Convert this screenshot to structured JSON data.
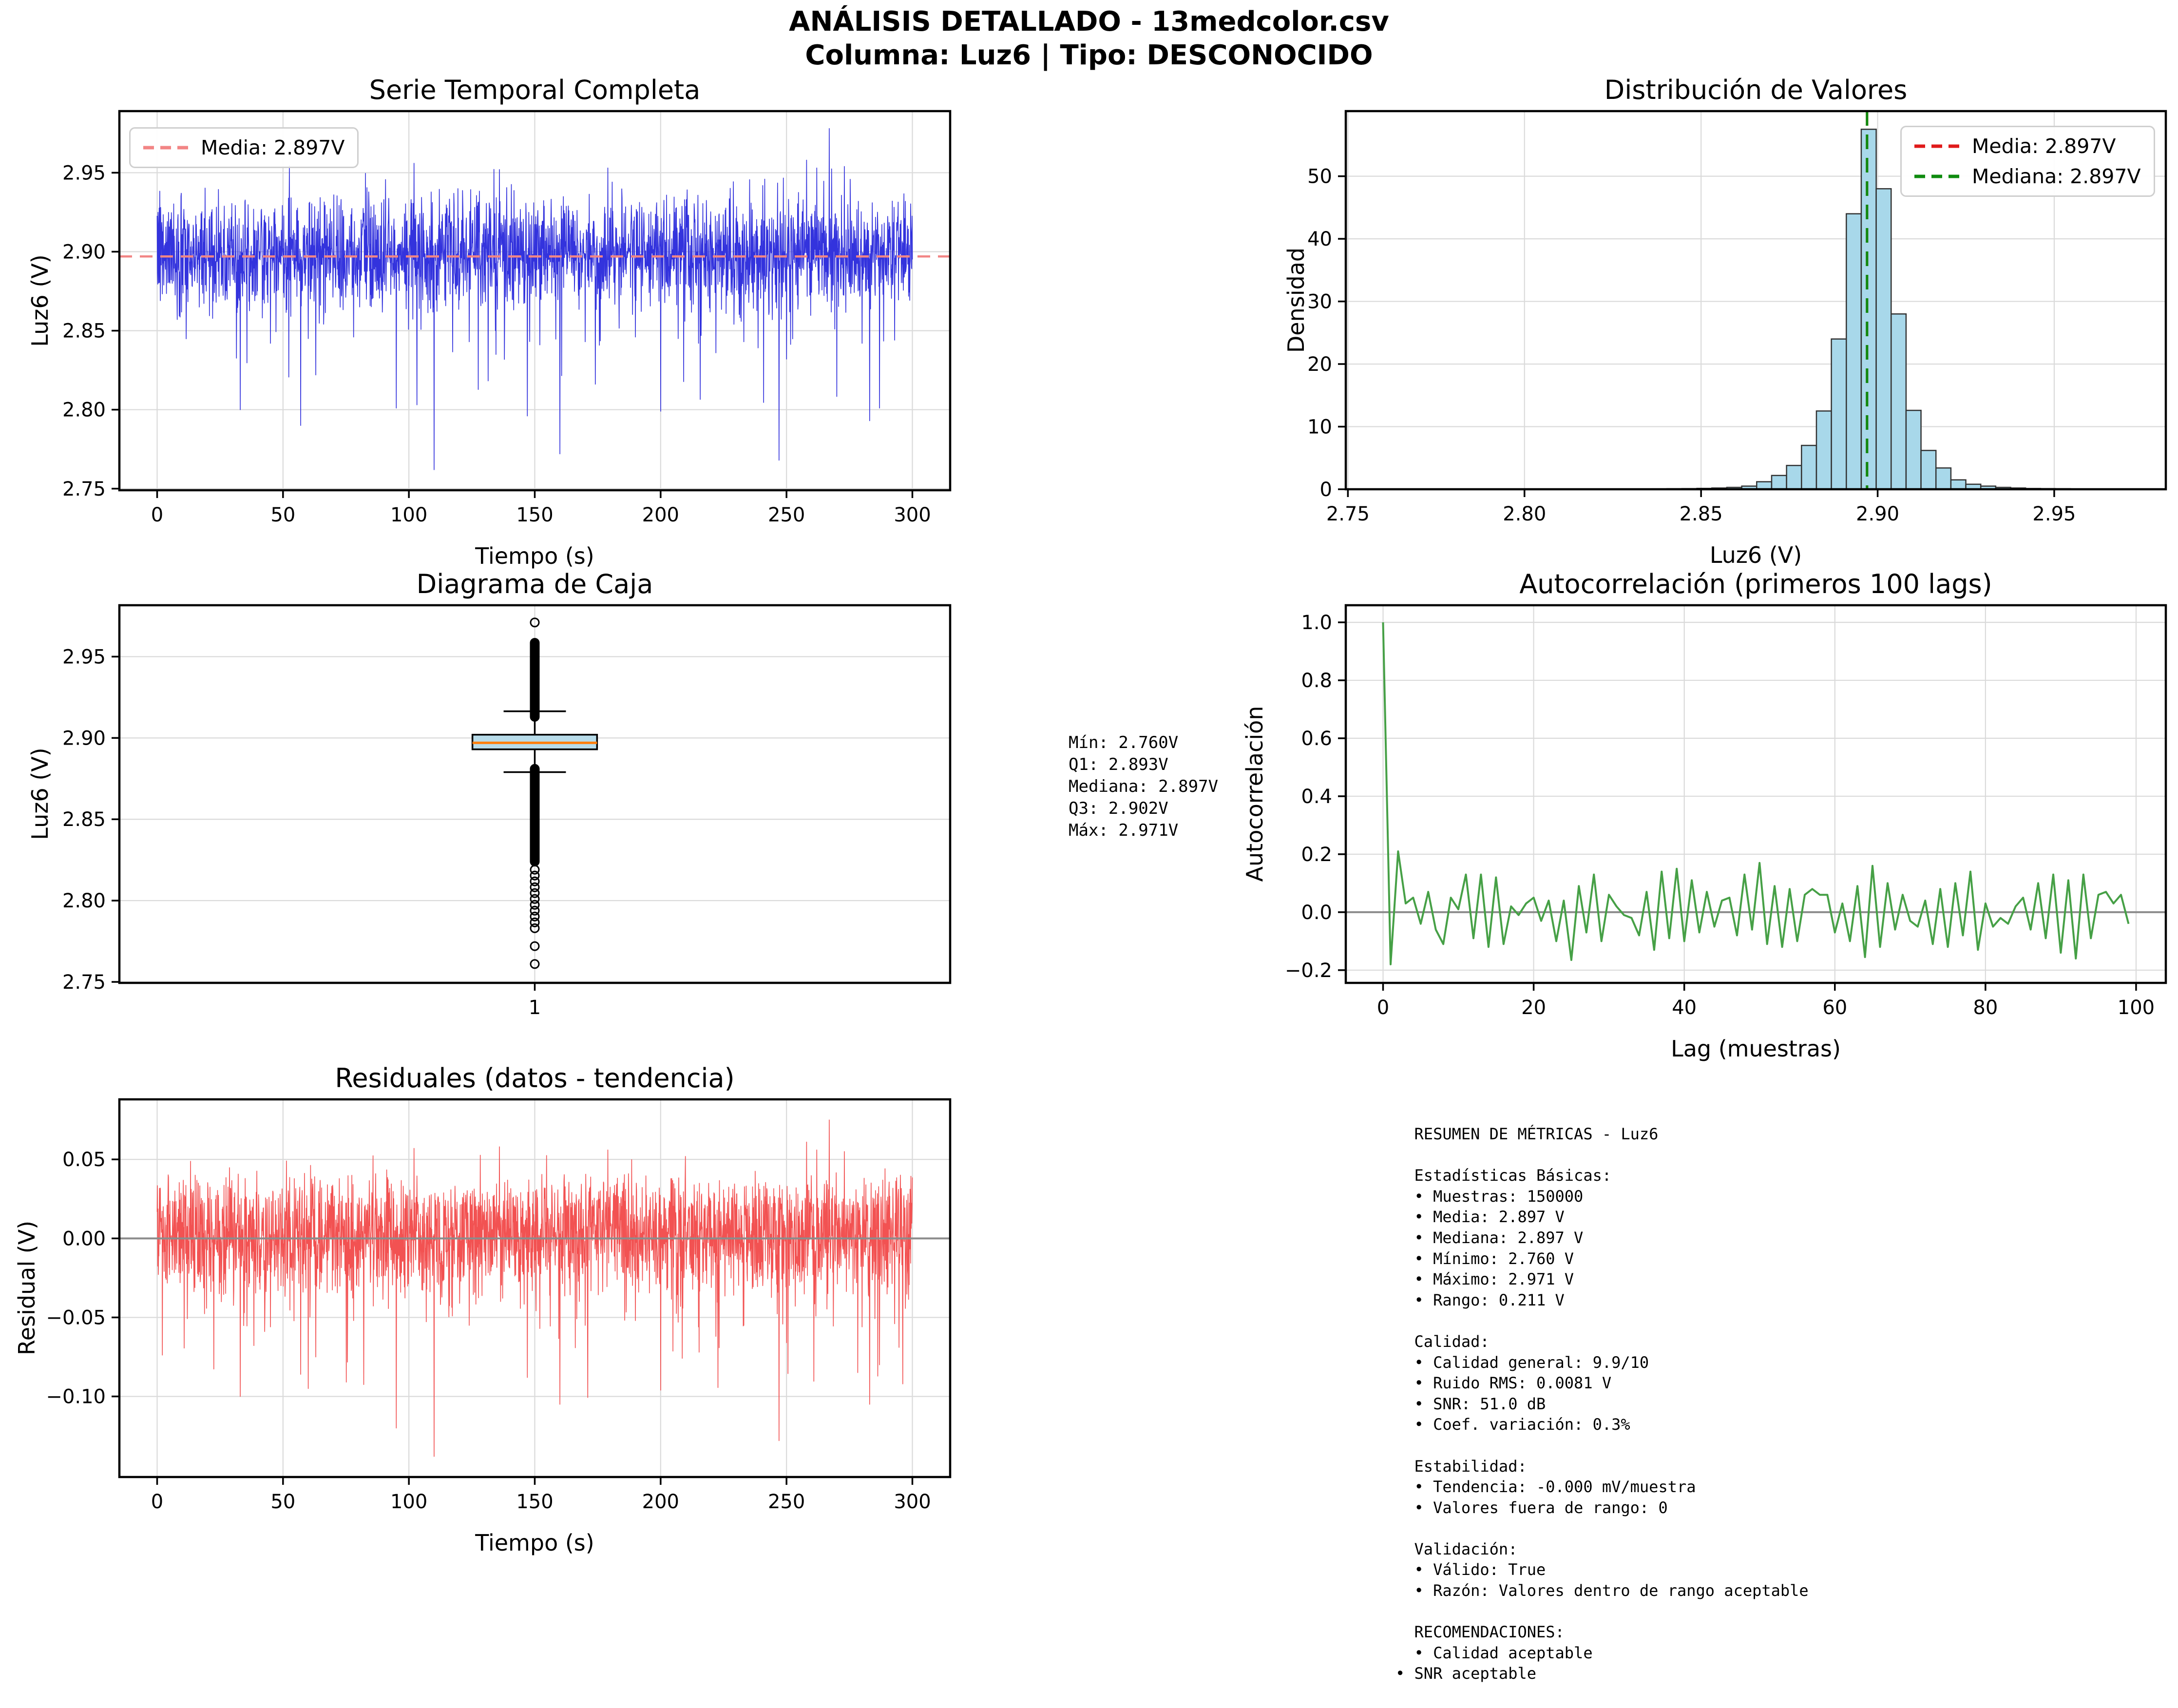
{
  "header": {
    "line1": "ANÁLISIS DETALLADO - 13medcolor.csv",
    "line2": "Columna: Luz6 | Tipo: DESCONOCIDO"
  },
  "colors": {
    "series_blue": "#3333dd",
    "mean_dash_soft_red": "#f28585",
    "mean_dash_red": "#e01a1a",
    "median_green": "#0f8b0f",
    "hist_fill": "#a8d8ea",
    "hist_edge": "#333333",
    "box_fill": "#b8dcea",
    "box_median_orange": "#ff7f0e",
    "acf_green": "#46a046",
    "residual_red": "#f25252",
    "zero_line_gray": "#8c8c8c",
    "grid": "#dadada",
    "spine": "#000000"
  },
  "stats_box": {
    "lines": [
      "Mín: 2.760V",
      "Q1: 2.893V",
      "Mediana: 2.897V",
      "Q3: 2.902V",
      "Máx: 2.971V"
    ]
  },
  "metrics_panel": {
    "lines": [
      "  RESUMEN DE MÉTRICAS - Luz6",
      "",
      "  Estadísticas Básicas:",
      "  • Muestras: 150000",
      "  • Media: 2.897 V",
      "  • Mediana: 2.897 V",
      "  • Mínimo: 2.760 V",
      "  • Máximo: 2.971 V",
      "  • Rango: 0.211 V",
      "",
      "  Calidad:",
      "  • Calidad general: 9.9/10",
      "  • Ruido RMS: 0.0081 V",
      "  • SNR: 51.0 dB",
      "  • Coef. variación: 0.3%",
      "",
      "  Estabilidad:",
      "  • Tendencia: -0.000 mV/muestra",
      "  • Valores fuera de rango: 0",
      "",
      "  Validación:",
      "  • Válido: True",
      "  • Razón: Valores dentro de rango aceptable",
      "",
      "  RECOMENDACIONES:",
      "  • Calidad aceptable",
      "• SNR aceptable"
    ]
  },
  "chart_data": [
    {
      "id": "serie-temporal",
      "type": "line_noise",
      "title": "Serie Temporal Completa",
      "xlabel": "Tiempo (s)",
      "ylabel": "Luz6 (V)",
      "xlim": [
        -15,
        315
      ],
      "ylim": [
        2.749,
        2.989
      ],
      "xticks": [
        0,
        50,
        100,
        150,
        200,
        250,
        300
      ],
      "xtick_labels": [
        "0",
        "50",
        "100",
        "150",
        "200",
        "250",
        "300"
      ],
      "yticks": [
        2.75,
        2.8,
        2.85,
        2.9,
        2.95
      ],
      "ytick_labels": [
        "2.75",
        "2.80",
        "2.85",
        "2.90",
        "2.95"
      ],
      "grid": true,
      "legend": {
        "entries": [
          {
            "label": "Media: 2.897V",
            "color": "#f28585"
          }
        ]
      },
      "mean_line": {
        "y": 2.897,
        "color": "#f28585"
      },
      "series": {
        "color": "#3333dd",
        "n": 2600,
        "seed": 7,
        "mean": 2.897,
        "sigma": 0.011,
        "up_off": 0.016,
        "up_scale": 0.013,
        "dn_off": 0.016,
        "dn_scale": 0.014,
        "deep_min": 0.05,
        "deep_span": 0.045,
        "clip_lo": 2.8,
        "clip_hi": 2.9565,
        "p_base": 0.7,
        "p_up": 0.88,
        "p_deep": 0.992,
        "spikes": [
          [
            33,
            2.8
          ],
          [
            45,
            2.842
          ],
          [
            57,
            2.79
          ],
          [
            60,
            2.845
          ],
          [
            63,
            2.822
          ],
          [
            78,
            2.846
          ],
          [
            95,
            2.801
          ],
          [
            102,
            2.956
          ],
          [
            110,
            2.762
          ],
          [
            124,
            2.843
          ],
          [
            136,
            2.952
          ],
          [
            147,
            2.796
          ],
          [
            152,
            2.841
          ],
          [
            160,
            2.772
          ],
          [
            170,
            2.843
          ],
          [
            179,
            2.953
          ],
          [
            190,
            2.846
          ],
          [
            200,
            2.799
          ],
          [
            207,
            2.845
          ],
          [
            215,
            2.842
          ],
          [
            222,
            2.836
          ],
          [
            233,
            2.843
          ],
          [
            247,
            2.768
          ],
          [
            250,
            2.832
          ],
          [
            258,
            2.958
          ],
          [
            262,
            2.953
          ],
          [
            267,
            2.978
          ],
          [
            273,
            2.954
          ],
          [
            280,
            2.842
          ],
          [
            283,
            2.793
          ],
          [
            287,
            2.801
          ],
          [
            293,
            2.844
          ]
        ]
      }
    },
    {
      "id": "distribucion",
      "type": "histogram",
      "title": "Distribución de Valores",
      "xlabel": "Luz6 (V)",
      "ylabel": "Densidad",
      "xlim": [
        2.7494,
        2.9816
      ],
      "ylim": [
        0,
        60.4
      ],
      "xticks": [
        2.75,
        2.8,
        2.85,
        2.9,
        2.95
      ],
      "xtick_labels": [
        "2.75",
        "2.80",
        "2.85",
        "2.90",
        "2.95"
      ],
      "yticks": [
        0,
        10,
        20,
        30,
        40,
        50
      ],
      "ytick_labels": [
        "0",
        "10",
        "20",
        "30",
        "40",
        "50"
      ],
      "grid": true,
      "legend": {
        "entries": [
          {
            "label": "Media: 2.897V",
            "color": "#e01a1a"
          },
          {
            "label": "Mediana: 2.897V",
            "color": "#0f8b0f"
          }
        ]
      },
      "bins": {
        "start": 2.76,
        "width": 0.00423,
        "densities": [
          0.05,
          0,
          0.02,
          0,
          0,
          0.02,
          0,
          0,
          0.03,
          0,
          0.02,
          0,
          0.03,
          0,
          0.04,
          0.03,
          0.05,
          0.04,
          0.06,
          0.08,
          0.1,
          0.14,
          0.2,
          0.3,
          0.5,
          1.2,
          2.2,
          3.8,
          7.0,
          12.5,
          24.0,
          44.0,
          57.5,
          48.0,
          28.0,
          12.6,
          6.2,
          3.4,
          1.5,
          0.8,
          0.5,
          0.3,
          0.2,
          0.12,
          0.1,
          0.08,
          0.05,
          0.04,
          0.03,
          0.05
        ]
      },
      "fill": "#a8d8ea",
      "edge": "#333333",
      "vlines": [
        {
          "x": 2.897,
          "color": "#e01a1a",
          "name": "media"
        },
        {
          "x": 2.897,
          "color": "#0f8b0f",
          "name": "mediana"
        }
      ]
    },
    {
      "id": "diagrama-caja",
      "type": "box",
      "title": "Diagrama de Caja",
      "xlabel": "",
      "ylabel": "Luz6 (V)",
      "xlim": [
        0,
        2
      ],
      "ylim": [
        2.7494,
        2.9816
      ],
      "xticks": [
        1
      ],
      "xtick_labels": [
        "1"
      ],
      "yticks": [
        2.75,
        2.8,
        2.85,
        2.9,
        2.95
      ],
      "ytick_labels": [
        "2.75",
        "2.80",
        "2.85",
        "2.90",
        "2.95"
      ],
      "grid": true,
      "box": {
        "q1": 2.893,
        "median": 2.897,
        "q3": 2.902,
        "whisker_low": 2.879,
        "whisker_high": 2.9164,
        "center": 1,
        "width": 0.3,
        "fill": "#b8dcea",
        "median_color": "#ff7f0e"
      },
      "outliers": {
        "above_dense": {
          "from": 2.913,
          "to": 2.959,
          "step": 0.0007
        },
        "above_points": [
          2.971
        ],
        "below_dense": {
          "from": 2.824,
          "to": 2.8815,
          "step": 0.0006
        },
        "below_mid": {
          "from": 2.783,
          "to": 2.822,
          "step": 0.0036
        },
        "below_points": [
          2.772,
          2.761
        ]
      }
    },
    {
      "id": "autocorrelacion",
      "type": "line_values",
      "title": "Autocorrelación (primeros 100 lags)",
      "xlabel": "Lag (muestras)",
      "ylabel": "Autocorrelación",
      "xlim": [
        -4.95,
        103.95
      ],
      "ylim": [
        -0.244,
        1.059
      ],
      "xticks": [
        0,
        20,
        40,
        60,
        80,
        100
      ],
      "xtick_labels": [
        "0",
        "20",
        "40",
        "60",
        "80",
        "100"
      ],
      "yticks": [
        -0.2,
        0.0,
        0.2,
        0.4,
        0.6,
        0.8,
        1.0
      ],
      "ytick_labels": [
        "−0.2",
        "0.0",
        "0.2",
        "0.4",
        "0.6",
        "0.8",
        "1.0"
      ],
      "grid": true,
      "zero_line": {
        "color": "#8c8c8c",
        "over": false
      },
      "line_color": "#46a046",
      "values": [
        1.0,
        -0.18,
        0.21,
        0.03,
        0.05,
        -0.04,
        0.07,
        -0.06,
        -0.11,
        0.05,
        0.01,
        0.13,
        -0.09,
        0.13,
        -0.12,
        0.12,
        -0.11,
        0.02,
        -0.01,
        0.03,
        0.05,
        -0.03,
        0.04,
        -0.1,
        0.04,
        -0.165,
        0.09,
        -0.07,
        0.13,
        -0.1,
        0.06,
        0.02,
        -0.01,
        -0.02,
        -0.08,
        0.07,
        -0.13,
        0.14,
        -0.09,
        0.15,
        -0.1,
        0.11,
        -0.07,
        0.07,
        -0.05,
        0.04,
        0.05,
        -0.08,
        0.13,
        -0.06,
        0.17,
        -0.11,
        0.09,
        -0.12,
        0.08,
        -0.1,
        0.06,
        0.08,
        0.06,
        0.06,
        -0.07,
        0.03,
        -0.1,
        0.09,
        -0.155,
        0.16,
        -0.12,
        0.1,
        -0.06,
        0.06,
        -0.03,
        -0.05,
        0.04,
        -0.11,
        0.08,
        -0.12,
        0.1,
        -0.08,
        0.14,
        -0.13,
        0.03,
        -0.05,
        -0.02,
        -0.04,
        0.02,
        0.05,
        -0.06,
        0.1,
        -0.09,
        0.13,
        -0.14,
        0.11,
        -0.16,
        0.13,
        -0.09,
        0.06,
        0.07,
        0.03,
        0.06,
        -0.04
      ]
    },
    {
      "id": "residuales",
      "type": "line_noise",
      "title": "Residuales (datos - tendencia)",
      "xlabel": "Tiempo (s)",
      "ylabel": "Residual (V)",
      "xlim": [
        -15,
        315
      ],
      "ylim": [
        -0.151,
        0.088
      ],
      "xticks": [
        0,
        50,
        100,
        150,
        200,
        250,
        300
      ],
      "xtick_labels": [
        "0",
        "50",
        "100",
        "150",
        "200",
        "250",
        "300"
      ],
      "yticks": [
        -0.1,
        -0.05,
        0.0,
        0.05
      ],
      "ytick_labels": [
        "−0.10",
        "−0.05",
        "0.00",
        "0.05"
      ],
      "grid": true,
      "zero_line": {
        "color": "#8c8c8c",
        "over": true
      },
      "series": {
        "color": "#f25252",
        "n": 2600,
        "seed": 13,
        "mean": 0,
        "sigma": 0.013,
        "up_off": 0.018,
        "up_scale": 0.012,
        "dn_off": 0.018,
        "dn_scale": 0.016,
        "deep_min": 0.055,
        "deep_span": 0.05,
        "clip_lo": -0.108,
        "clip_hi": 0.062,
        "p_base": 0.7,
        "p_up": 0.88,
        "p_deep": 0.992,
        "spikes": [
          [
            33,
            -0.1
          ],
          [
            45,
            -0.056
          ],
          [
            57,
            -0.086
          ],
          [
            60,
            -0.095
          ],
          [
            63,
            -0.075
          ],
          [
            78,
            -0.052
          ],
          [
            95,
            -0.12
          ],
          [
            102,
            0.057
          ],
          [
            110,
            -0.138
          ],
          [
            124,
            -0.055
          ],
          [
            136,
            0.058
          ],
          [
            147,
            -0.088
          ],
          [
            152,
            -0.057
          ],
          [
            160,
            -0.105
          ],
          [
            170,
            -0.055
          ],
          [
            179,
            0.056
          ],
          [
            190,
            -0.052
          ],
          [
            200,
            -0.096
          ],
          [
            207,
            -0.053
          ],
          [
            215,
            -0.056
          ],
          [
            222,
            -0.062
          ],
          [
            233,
            -0.055
          ],
          [
            247,
            -0.128
          ],
          [
            250,
            -0.066
          ],
          [
            258,
            0.061
          ],
          [
            262,
            0.056
          ],
          [
            267,
            0.075
          ],
          [
            273,
            0.055
          ],
          [
            280,
            -0.056
          ],
          [
            283,
            -0.105
          ],
          [
            287,
            -0.08
          ],
          [
            293,
            -0.054
          ]
        ]
      }
    }
  ]
}
